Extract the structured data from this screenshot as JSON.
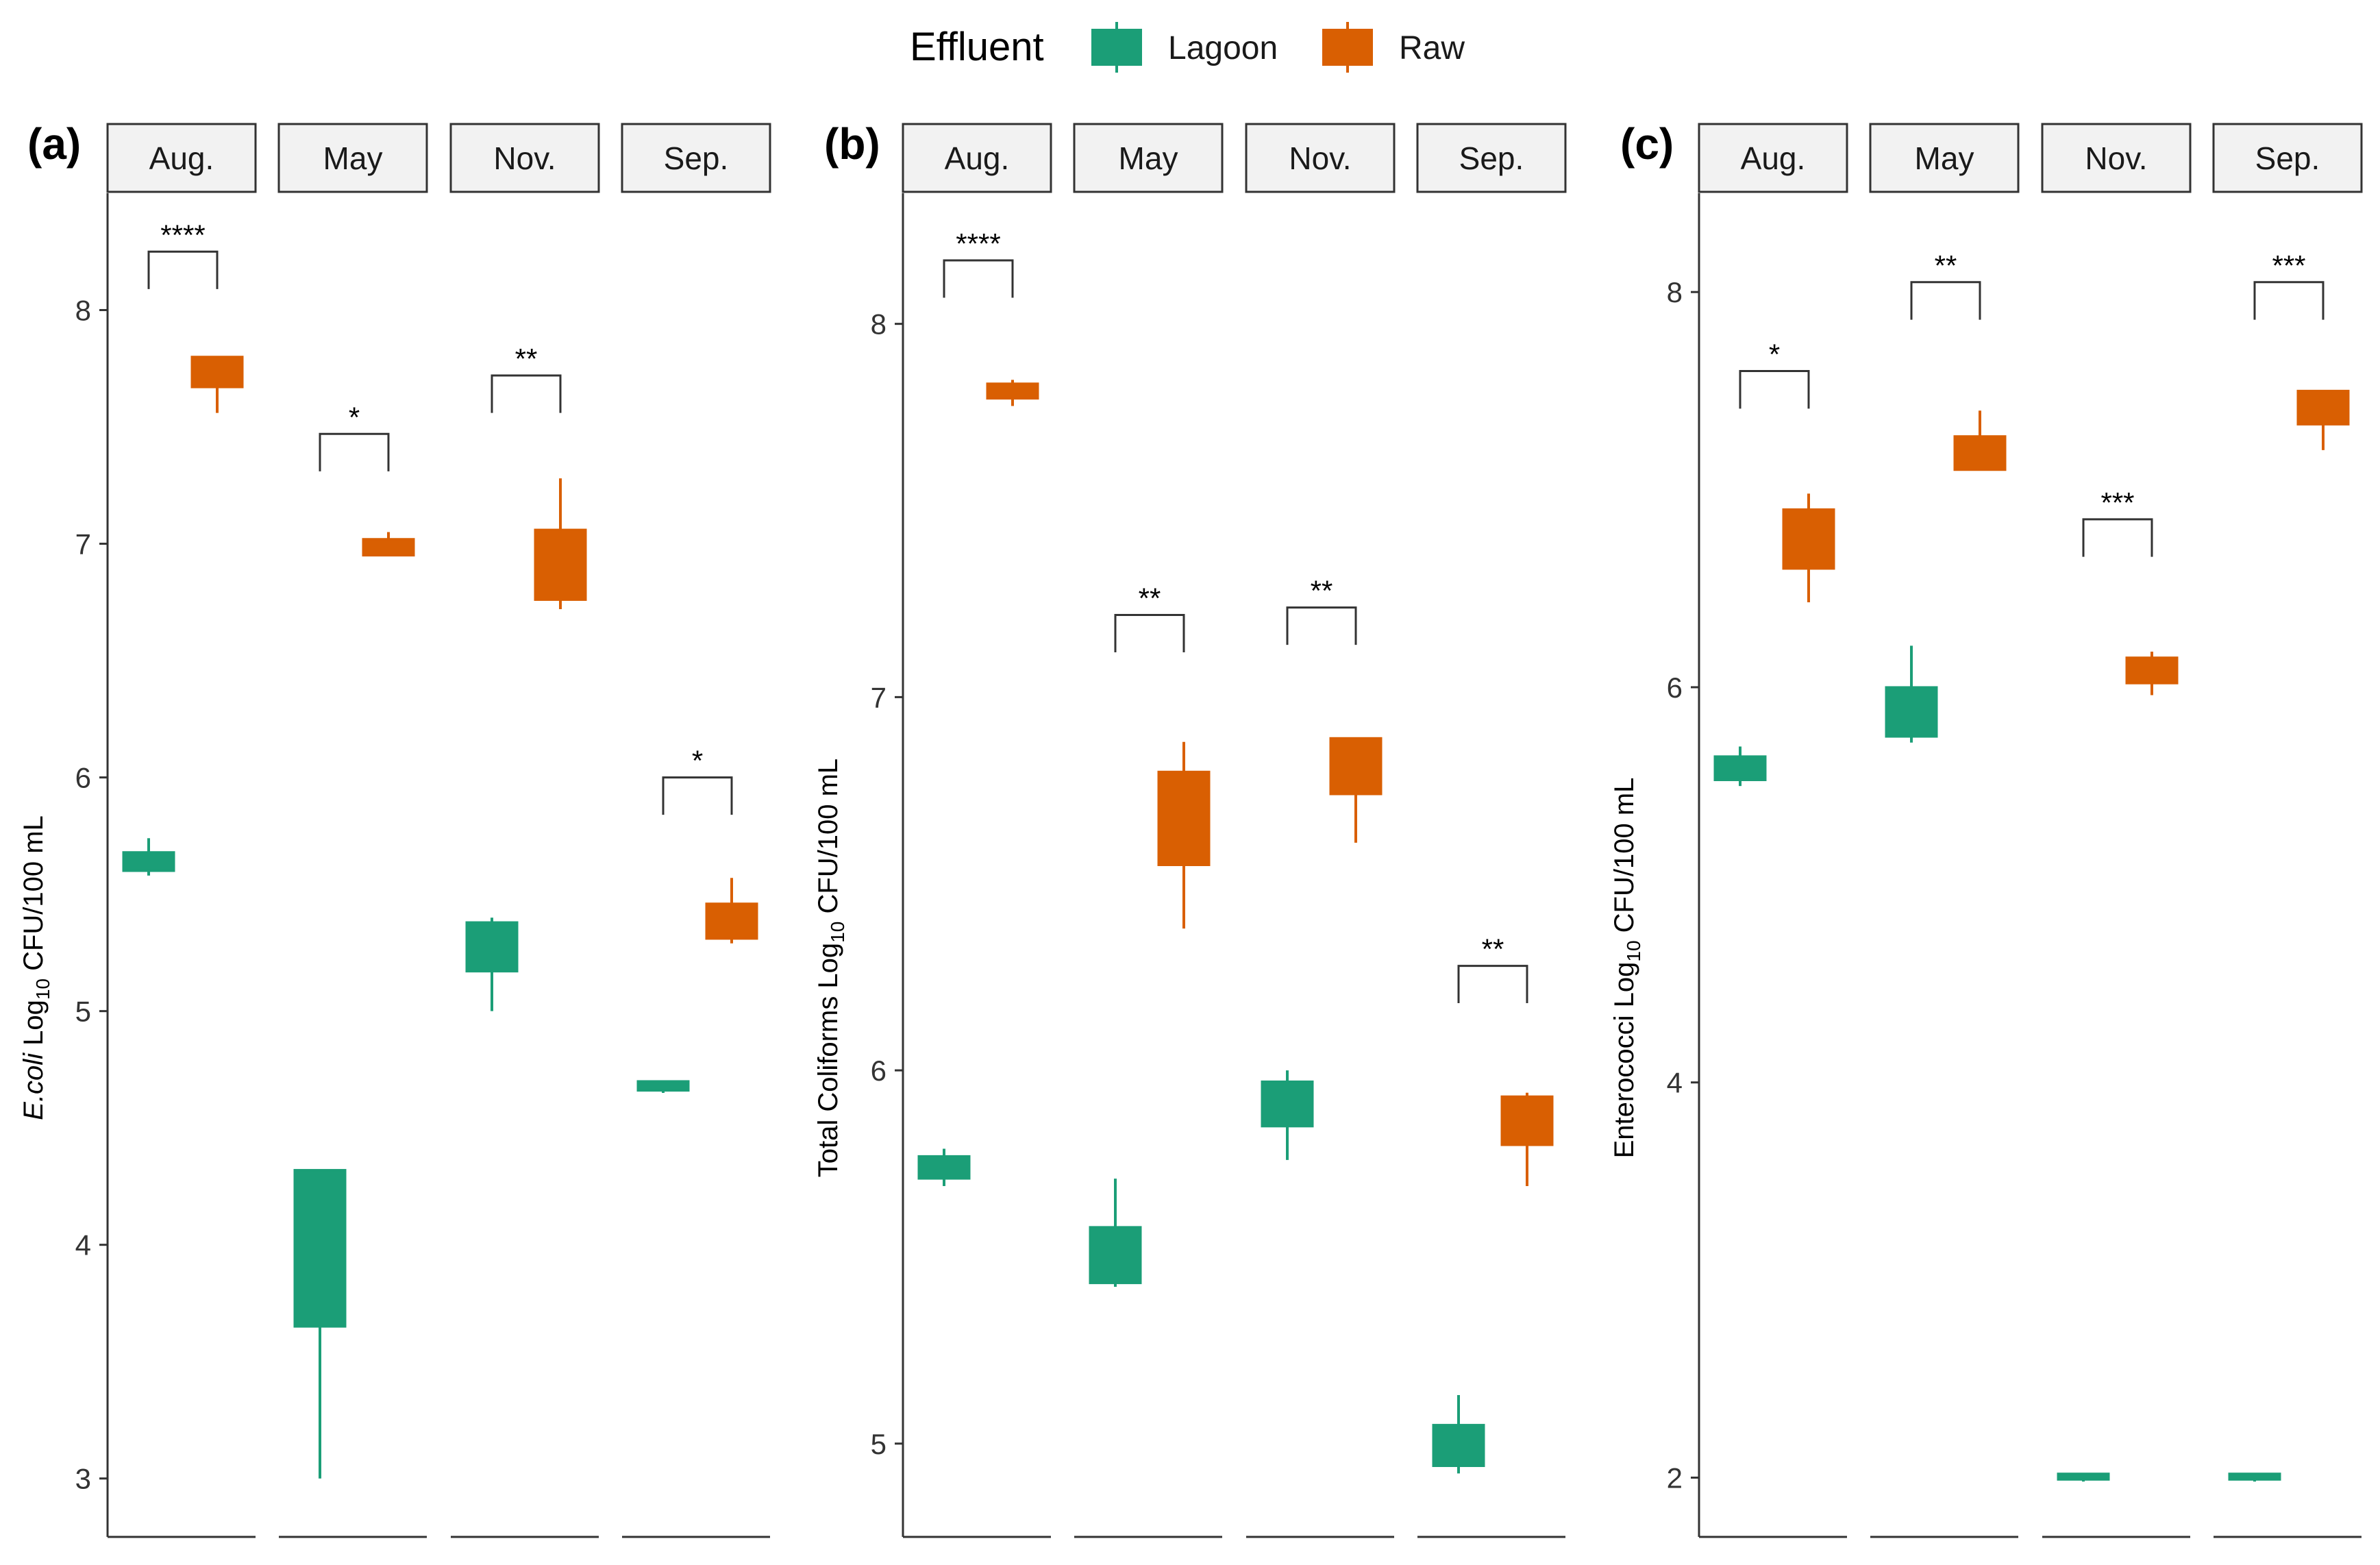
{
  "legend": {
    "title": "Effluent",
    "items": [
      {
        "label": "Lagoon",
        "color": "#1b9e77"
      },
      {
        "label": "Raw",
        "color": "#d95f02"
      }
    ]
  },
  "colors": {
    "Lagoon": "#1b9e77",
    "Raw": "#d95f02"
  },
  "chart_data": [
    {
      "type": "box",
      "panel_label": "(a)",
      "ylabel_prefix": "E.coli",
      "ylabel_suffix": " Log",
      "ylabel_sub": "10",
      "ylabel_end": " CFU/100 mL",
      "ylim": [
        2.75,
        8.5
      ],
      "yticks": [
        "3",
        "4",
        "5",
        "6",
        "7",
        "8"
      ],
      "facets": [
        {
          "label": "Aug.",
          "sig": "****",
          "bracket_y": 8.25,
          "bracket_drop": 0.16,
          "lagoon": {
            "lo": 5.58,
            "q1": 5.6,
            "q3": 5.68,
            "hi": 5.74
          },
          "raw": {
            "lo": 7.56,
            "q1": 7.67,
            "q3": 7.8,
            "hi": 7.8
          }
        },
        {
          "label": "May",
          "sig": "*",
          "bracket_y": 7.47,
          "bracket_drop": 0.16,
          "lagoon": {
            "lo": 3.0,
            "q1": 3.65,
            "q3": 4.32,
            "hi": 4.32
          },
          "raw": {
            "lo": 6.95,
            "q1": 6.95,
            "q3": 7.02,
            "hi": 7.05
          }
        },
        {
          "label": "Nov.",
          "sig": "**",
          "bracket_y": 7.72,
          "bracket_drop": 0.16,
          "lagoon": {
            "lo": 5.0,
            "q1": 5.17,
            "q3": 5.38,
            "hi": 5.4
          },
          "raw": {
            "lo": 6.72,
            "q1": 6.76,
            "q3": 7.06,
            "hi": 7.28
          }
        },
        {
          "label": "Sep.",
          "sig": "*",
          "bracket_y": 6.0,
          "bracket_drop": 0.16,
          "lagoon": {
            "lo": 4.65,
            "q1": 4.66,
            "q3": 4.7,
            "hi": 4.7
          },
          "raw": {
            "lo": 5.29,
            "q1": 5.31,
            "q3": 5.46,
            "hi": 5.57
          }
        }
      ]
    },
    {
      "type": "box",
      "panel_label": "(b)",
      "ylabel_prefix": "",
      "ylabel_suffix": "Total Coliforms Log",
      "ylabel_sub": "10",
      "ylabel_end": " CFU/100 mL",
      "ylim": [
        4.75,
        8.35
      ],
      "yticks": [
        "5",
        "6",
        "7",
        "8"
      ],
      "facets": [
        {
          "label": "Aug.",
          "sig": "****",
          "bracket_y": 8.17,
          "bracket_drop": 0.1,
          "lagoon": {
            "lo": 5.69,
            "q1": 5.71,
            "q3": 5.77,
            "hi": 5.79
          },
          "raw": {
            "lo": 7.78,
            "q1": 7.8,
            "q3": 7.84,
            "hi": 7.85
          }
        },
        {
          "label": "May",
          "sig": "**",
          "bracket_y": 7.22,
          "bracket_drop": 0.1,
          "lagoon": {
            "lo": 5.42,
            "q1": 5.43,
            "q3": 5.58,
            "hi": 5.71
          },
          "raw": {
            "lo": 6.38,
            "q1": 6.55,
            "q3": 6.8,
            "hi": 6.88
          }
        },
        {
          "label": "Nov.",
          "sig": "**",
          "bracket_y": 7.24,
          "bracket_drop": 0.1,
          "lagoon": {
            "lo": 5.76,
            "q1": 5.85,
            "q3": 5.97,
            "hi": 6.0
          },
          "raw": {
            "lo": 6.61,
            "q1": 6.74,
            "q3": 6.89,
            "hi": 6.89
          }
        },
        {
          "label": "Sep.",
          "sig": "**",
          "bracket_y": 6.28,
          "bracket_drop": 0.1,
          "lagoon": {
            "lo": 4.92,
            "q1": 4.94,
            "q3": 5.05,
            "hi": 5.13
          },
          "raw": {
            "lo": 5.69,
            "q1": 5.8,
            "q3": 5.93,
            "hi": 5.94
          }
        }
      ]
    },
    {
      "type": "box",
      "panel_label": "(c)",
      "ylabel_prefix": "",
      "ylabel_suffix": "Enterococci Log",
      "ylabel_sub": "10",
      "ylabel_end": " CFU/100 mL",
      "ylim": [
        1.7,
        8.5
      ],
      "yticks": [
        "2",
        "4",
        "6",
        "8"
      ],
      "facets": [
        {
          "label": "Aug.",
          "sig": "*",
          "bracket_y": 7.6,
          "bracket_drop": 0.19,
          "lagoon": {
            "lo": 5.5,
            "q1": 5.53,
            "q3": 5.65,
            "hi": 5.7
          },
          "raw": {
            "lo": 6.43,
            "q1": 6.6,
            "q3": 6.9,
            "hi": 6.98
          }
        },
        {
          "label": "May",
          "sig": "**",
          "bracket_y": 8.05,
          "bracket_drop": 0.19,
          "lagoon": {
            "lo": 5.72,
            "q1": 5.75,
            "q3": 6.0,
            "hi": 6.21
          },
          "raw": {
            "lo": 7.1,
            "q1": 7.1,
            "q3": 7.27,
            "hi": 7.4
          }
        },
        {
          "label": "Nov.",
          "sig": "***",
          "bracket_y": 6.85,
          "bracket_drop": 0.19,
          "lagoon": {
            "lo": 1.98,
            "q1": 1.99,
            "q3": 2.02,
            "hi": 2.02
          },
          "raw": {
            "lo": 5.96,
            "q1": 6.02,
            "q3": 6.15,
            "hi": 6.18
          }
        },
        {
          "label": "Sep.",
          "sig": "***",
          "bracket_y": 8.05,
          "bracket_drop": 0.19,
          "lagoon": {
            "lo": 1.98,
            "q1": 1.99,
            "q3": 2.02,
            "hi": 2.02
          },
          "raw": {
            "lo": 7.2,
            "q1": 7.33,
            "q3": 7.5,
            "hi": 7.5
          }
        }
      ]
    }
  ]
}
